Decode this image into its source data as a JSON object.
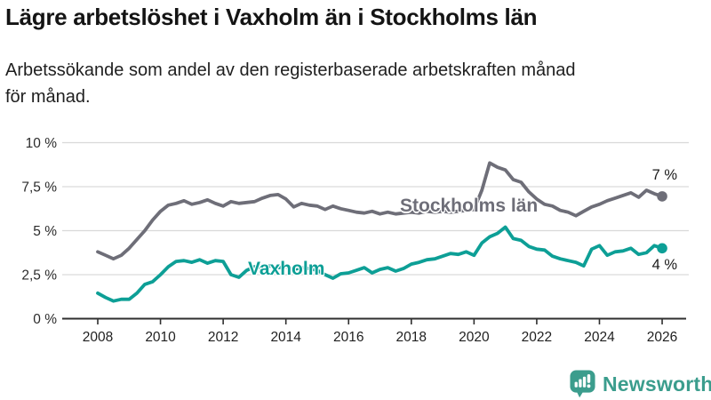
{
  "header": {
    "title": "Lägre arbetslöshet i Vaxholm än i Stockholms län",
    "subtitle_line1": "Arbetssökande som andel av den registerbaserade arbetskraften månad",
    "subtitle_line2": "för månad."
  },
  "chart_data": {
    "type": "line",
    "unit": "%",
    "grid": true,
    "legend_position": "inline-labels",
    "x_axis": {
      "ticks": [
        2008,
        2010,
        2012,
        2014,
        2016,
        2018,
        2020,
        2022,
        2024,
        2026
      ],
      "range": [
        2006.9,
        2026.9
      ]
    },
    "y_axis": {
      "ticks": [
        0,
        2.5,
        5,
        7.5,
        10
      ],
      "tick_labels": [
        "0 %",
        "2,5 %",
        "5 %",
        "7,5 %",
        "10 %"
      ],
      "range": [
        0,
        10
      ]
    },
    "series": [
      {
        "name": "Stockholms län",
        "color": "#6e6e78",
        "end_label": "7 %",
        "points": [
          [
            2008.0,
            3.8
          ],
          [
            2008.25,
            3.6
          ],
          [
            2008.5,
            3.4
          ],
          [
            2008.75,
            3.6
          ],
          [
            2009.0,
            4.0
          ],
          [
            2009.25,
            4.5
          ],
          [
            2009.5,
            5.0
          ],
          [
            2009.75,
            5.6
          ],
          [
            2010.0,
            6.1
          ],
          [
            2010.25,
            6.45
          ],
          [
            2010.5,
            6.55
          ],
          [
            2010.75,
            6.7
          ],
          [
            2011.0,
            6.5
          ],
          [
            2011.25,
            6.6
          ],
          [
            2011.5,
            6.75
          ],
          [
            2011.75,
            6.55
          ],
          [
            2012.0,
            6.4
          ],
          [
            2012.25,
            6.65
          ],
          [
            2012.5,
            6.55
          ],
          [
            2012.75,
            6.6
          ],
          [
            2013.0,
            6.65
          ],
          [
            2013.25,
            6.85
          ],
          [
            2013.5,
            7.0
          ],
          [
            2013.75,
            7.05
          ],
          [
            2014.0,
            6.8
          ],
          [
            2014.25,
            6.35
          ],
          [
            2014.5,
            6.55
          ],
          [
            2014.75,
            6.45
          ],
          [
            2015.0,
            6.4
          ],
          [
            2015.25,
            6.2
          ],
          [
            2015.5,
            6.4
          ],
          [
            2015.75,
            6.25
          ],
          [
            2016.0,
            6.15
          ],
          [
            2016.25,
            6.05
          ],
          [
            2016.5,
            6.0
          ],
          [
            2016.75,
            6.1
          ],
          [
            2017.0,
            5.95
          ],
          [
            2017.25,
            6.05
          ],
          [
            2017.5,
            5.95
          ],
          [
            2017.75,
            6.0
          ],
          [
            2018.0,
            6.05
          ],
          [
            2018.25,
            6.0
          ],
          [
            2018.5,
            6.1
          ],
          [
            2018.75,
            6.05
          ],
          [
            2019.0,
            6.1
          ],
          [
            2019.25,
            6.05
          ],
          [
            2019.5,
            6.1
          ],
          [
            2019.75,
            6.15
          ],
          [
            2020.0,
            6.2
          ],
          [
            2020.25,
            7.3
          ],
          [
            2020.5,
            8.85
          ],
          [
            2020.75,
            8.6
          ],
          [
            2021.0,
            8.45
          ],
          [
            2021.25,
            7.9
          ],
          [
            2021.5,
            7.75
          ],
          [
            2021.75,
            7.2
          ],
          [
            2022.0,
            6.8
          ],
          [
            2022.25,
            6.5
          ],
          [
            2022.5,
            6.4
          ],
          [
            2022.75,
            6.15
          ],
          [
            2023.0,
            6.05
          ],
          [
            2023.25,
            5.85
          ],
          [
            2023.5,
            6.1
          ],
          [
            2023.75,
            6.35
          ],
          [
            2024.0,
            6.5
          ],
          [
            2024.25,
            6.7
          ],
          [
            2024.5,
            6.85
          ],
          [
            2024.75,
            7.0
          ],
          [
            2025.0,
            7.15
          ],
          [
            2025.25,
            6.9
          ],
          [
            2025.5,
            7.3
          ],
          [
            2025.75,
            7.1
          ],
          [
            2026.0,
            6.95
          ]
        ]
      },
      {
        "name": "Vaxholm",
        "color": "#0d9f96",
        "end_label": "4 %",
        "points": [
          [
            2008.0,
            1.45
          ],
          [
            2008.25,
            1.2
          ],
          [
            2008.5,
            1.0
          ],
          [
            2008.75,
            1.1
          ],
          [
            2009.0,
            1.1
          ],
          [
            2009.25,
            1.45
          ],
          [
            2009.5,
            1.95
          ],
          [
            2009.75,
            2.1
          ],
          [
            2010.0,
            2.5
          ],
          [
            2010.25,
            2.95
          ],
          [
            2010.5,
            3.25
          ],
          [
            2010.75,
            3.3
          ],
          [
            2011.0,
            3.2
          ],
          [
            2011.25,
            3.35
          ],
          [
            2011.5,
            3.15
          ],
          [
            2011.75,
            3.3
          ],
          [
            2012.0,
            3.25
          ],
          [
            2012.25,
            2.5
          ],
          [
            2012.5,
            2.35
          ],
          [
            2012.75,
            2.75
          ],
          [
            2013.0,
            2.95
          ],
          [
            2013.25,
            2.9
          ],
          [
            2013.5,
            3.0
          ],
          [
            2013.75,
            2.9
          ],
          [
            2014.0,
            2.95
          ],
          [
            2014.25,
            2.8
          ],
          [
            2014.5,
            2.9
          ],
          [
            2014.75,
            2.85
          ],
          [
            2015.0,
            2.75
          ],
          [
            2015.25,
            2.5
          ],
          [
            2015.5,
            2.3
          ],
          [
            2015.75,
            2.55
          ],
          [
            2016.0,
            2.6
          ],
          [
            2016.25,
            2.75
          ],
          [
            2016.5,
            2.9
          ],
          [
            2016.75,
            2.6
          ],
          [
            2017.0,
            2.8
          ],
          [
            2017.25,
            2.9
          ],
          [
            2017.5,
            2.7
          ],
          [
            2017.75,
            2.85
          ],
          [
            2018.0,
            3.1
          ],
          [
            2018.25,
            3.2
          ],
          [
            2018.5,
            3.35
          ],
          [
            2018.75,
            3.4
          ],
          [
            2019.0,
            3.55
          ],
          [
            2019.25,
            3.7
          ],
          [
            2019.5,
            3.65
          ],
          [
            2019.75,
            3.8
          ],
          [
            2020.0,
            3.6
          ],
          [
            2020.25,
            4.3
          ],
          [
            2020.5,
            4.65
          ],
          [
            2020.75,
            4.85
          ],
          [
            2021.0,
            5.2
          ],
          [
            2021.25,
            4.55
          ],
          [
            2021.5,
            4.45
          ],
          [
            2021.75,
            4.1
          ],
          [
            2022.0,
            3.95
          ],
          [
            2022.25,
            3.9
          ],
          [
            2022.5,
            3.55
          ],
          [
            2022.75,
            3.4
          ],
          [
            2023.0,
            3.3
          ],
          [
            2023.25,
            3.2
          ],
          [
            2023.5,
            3.0
          ],
          [
            2023.75,
            3.95
          ],
          [
            2024.0,
            4.15
          ],
          [
            2024.25,
            3.6
          ],
          [
            2024.5,
            3.8
          ],
          [
            2024.75,
            3.85
          ],
          [
            2025.0,
            4.0
          ],
          [
            2025.25,
            3.65
          ],
          [
            2025.5,
            3.75
          ],
          [
            2025.75,
            4.15
          ],
          [
            2026.0,
            4.0
          ]
        ]
      }
    ]
  },
  "branding": {
    "logo_text": "Newsworthy",
    "logo_color": "#3b9d8d",
    "logo_icon": "bar-chart-speech-bubble-icon"
  }
}
